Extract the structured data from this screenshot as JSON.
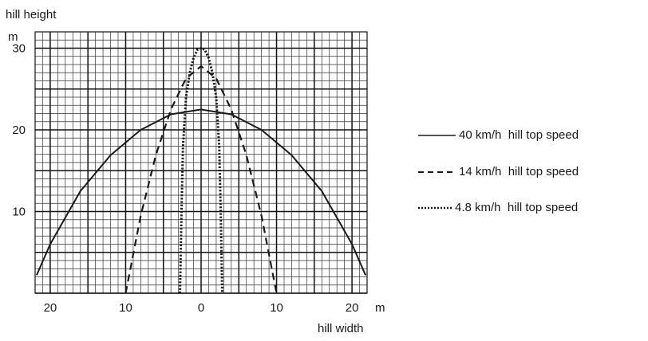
{
  "chart_data": {
    "type": "line",
    "title": "",
    "ylabel": "hill height",
    "yunit": "m",
    "xlabel": "hill width",
    "xunit": "m",
    "xlim": [
      -22,
      22
    ],
    "ylim": [
      0,
      32
    ],
    "x_ticks": [
      {
        "value": -20,
        "label": "20"
      },
      {
        "value": -10,
        "label": "10"
      },
      {
        "value": 0,
        "label": "0"
      },
      {
        "value": 10,
        "label": "10"
      },
      {
        "value": 20,
        "label": "20"
      }
    ],
    "y_ticks": [
      {
        "value": 10,
        "label": "10"
      },
      {
        "value": 20,
        "label": "20"
      },
      {
        "value": 30,
        "label": "30"
      }
    ],
    "grid": true,
    "legend_position": "right",
    "series": [
      {
        "name": "40 km/h  hill top speed",
        "style": "solid",
        "x": [
          -21.8,
          -20,
          -16,
          -12,
          -8,
          -4,
          0,
          4,
          8,
          12,
          16,
          20,
          21.8
        ],
        "y": [
          2.2,
          6.0,
          12.5,
          16.9,
          20.0,
          21.9,
          22.5,
          21.9,
          20.0,
          16.9,
          12.5,
          6.0,
          2.2
        ]
      },
      {
        "name": "14 km/h  hill top speed",
        "style": "dashed",
        "x": [
          -10,
          -8,
          -6,
          -4,
          -2,
          0,
          2,
          4,
          6,
          8,
          10
        ],
        "y": [
          0,
          9.5,
          16.9,
          22.5,
          26.3,
          27.8,
          26.3,
          22.5,
          16.9,
          9.5,
          0
        ]
      },
      {
        "name": "4.8 km/h  hill top speed",
        "style": "dotted",
        "x": [
          -2.8,
          -2.6,
          -2.4,
          -2.0,
          -1.5,
          -1.0,
          -0.5,
          0,
          0.5,
          1.0,
          1.5,
          2.0,
          2.4,
          2.6,
          2.8
        ],
        "y": [
          0,
          10,
          18,
          24,
          27,
          28.8,
          29.8,
          30,
          29.8,
          28.8,
          27,
          24,
          18,
          10,
          0
        ]
      }
    ]
  }
}
